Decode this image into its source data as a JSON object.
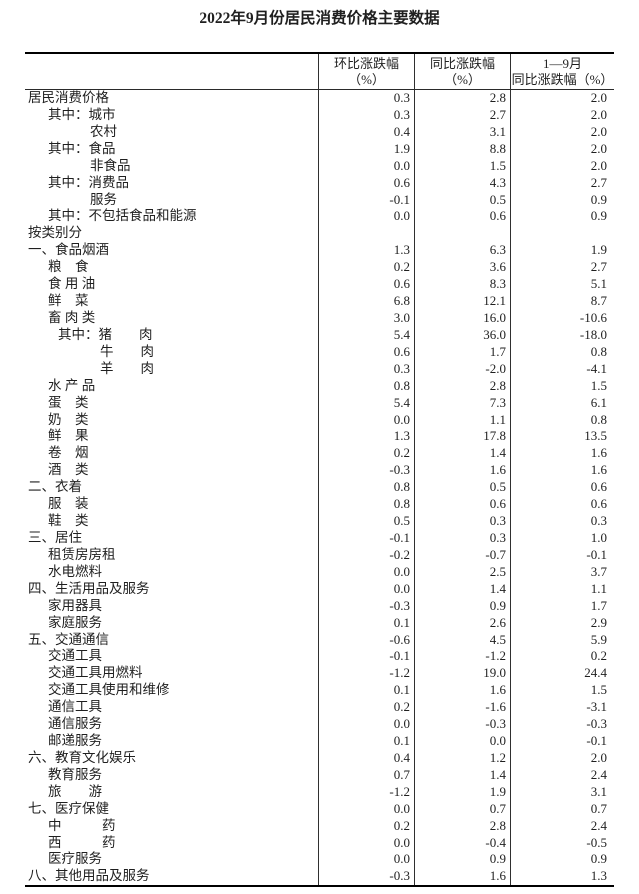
{
  "title": "2022年9月份居民消费价格主要数据",
  "table": {
    "headers": {
      "mom": {
        "line1": "环比涨跌幅",
        "line2": "（%）"
      },
      "yoy": {
        "line1": "同比涨跌幅",
        "line2": "（%）"
      },
      "ytd": {
        "line1": "1—9月",
        "line2": "同比涨跌幅（%）"
      }
    },
    "rows": [
      {
        "label": "居民消费价格",
        "ind": "0",
        "mom": "0.3",
        "yoy": "2.8",
        "ytd": "2.0"
      },
      {
        "label": "其中：城市",
        "ind": "1",
        "mom": "0.3",
        "yoy": "2.7",
        "ytd": "2.0"
      },
      {
        "label": "农村",
        "ind": "2",
        "mom": "0.4",
        "yoy": "3.1",
        "ytd": "2.0"
      },
      {
        "label": "其中：食品",
        "ind": "1",
        "mom": "1.9",
        "yoy": "8.8",
        "ytd": "2.0"
      },
      {
        "label": "非食品",
        "ind": "2",
        "mom": "0.0",
        "yoy": "1.5",
        "ytd": "2.0"
      },
      {
        "label": "其中：消费品",
        "ind": "1",
        "mom": "0.6",
        "yoy": "4.3",
        "ytd": "2.7"
      },
      {
        "label": "服务",
        "ind": "2",
        "mom": "-0.1",
        "yoy": "0.5",
        "ytd": "0.9"
      },
      {
        "label": "其中：不包括食品和能源",
        "ind": "1",
        "mom": "0.0",
        "yoy": "0.6",
        "ytd": "0.9"
      },
      {
        "label": "按类别分",
        "ind": "0",
        "mom": "",
        "yoy": "",
        "ytd": ""
      },
      {
        "label": "一、食品烟酒",
        "ind": "0",
        "mom": "1.3",
        "yoy": "6.3",
        "ytd": "1.9"
      },
      {
        "label": "粮　食",
        "ind": "1",
        "mom": "0.2",
        "yoy": "3.6",
        "ytd": "2.7"
      },
      {
        "label": "食 用 油",
        "ind": "1",
        "mom": "0.6",
        "yoy": "8.3",
        "ytd": "5.1"
      },
      {
        "label": "鲜　菜",
        "ind": "1",
        "mom": "6.8",
        "yoy": "12.1",
        "ytd": "8.7"
      },
      {
        "label": "畜 肉 类",
        "ind": "1",
        "mom": "3.0",
        "yoy": "16.0",
        "ytd": "-10.6"
      },
      {
        "label": "其中：猪　　肉",
        "ind": "15",
        "mom": "5.4",
        "yoy": "36.0",
        "ytd": "-18.0"
      },
      {
        "label": "牛　　肉",
        "ind": "25",
        "mom": "0.6",
        "yoy": "1.7",
        "ytd": "0.8"
      },
      {
        "label": "羊　　肉",
        "ind": "25",
        "mom": "0.3",
        "yoy": "-2.0",
        "ytd": "-4.1"
      },
      {
        "label": "水 产 品",
        "ind": "1",
        "mom": "0.8",
        "yoy": "2.8",
        "ytd": "1.5"
      },
      {
        "label": "蛋　类",
        "ind": "1",
        "mom": "5.4",
        "yoy": "7.3",
        "ytd": "6.1"
      },
      {
        "label": "奶　类",
        "ind": "1",
        "mom": "0.0",
        "yoy": "1.1",
        "ytd": "0.8"
      },
      {
        "label": "鲜　果",
        "ind": "1",
        "mom": "1.3",
        "yoy": "17.8",
        "ytd": "13.5"
      },
      {
        "label": "卷　烟",
        "ind": "1",
        "mom": "0.2",
        "yoy": "1.4",
        "ytd": "1.6"
      },
      {
        "label": "酒　类",
        "ind": "1",
        "mom": "-0.3",
        "yoy": "1.6",
        "ytd": "1.6"
      },
      {
        "label": "二、衣着",
        "ind": "0",
        "mom": "0.8",
        "yoy": "0.5",
        "ytd": "0.6"
      },
      {
        "label": "服　装",
        "ind": "1",
        "mom": "0.8",
        "yoy": "0.6",
        "ytd": "0.6"
      },
      {
        "label": "鞋　类",
        "ind": "1",
        "mom": "0.5",
        "yoy": "0.3",
        "ytd": "0.3"
      },
      {
        "label": "三、居住",
        "ind": "0",
        "mom": "-0.1",
        "yoy": "0.3",
        "ytd": "1.0"
      },
      {
        "label": "租赁房房租",
        "ind": "1",
        "mom": "-0.2",
        "yoy": "-0.7",
        "ytd": "-0.1"
      },
      {
        "label": "水电燃料",
        "ind": "1",
        "mom": "0.0",
        "yoy": "2.5",
        "ytd": "3.7"
      },
      {
        "label": "四、生活用品及服务",
        "ind": "0",
        "mom": "0.0",
        "yoy": "1.4",
        "ytd": "1.1"
      },
      {
        "label": "家用器具",
        "ind": "1",
        "mom": "-0.3",
        "yoy": "0.9",
        "ytd": "1.7"
      },
      {
        "label": "家庭服务",
        "ind": "1",
        "mom": "0.1",
        "yoy": "2.6",
        "ytd": "2.9"
      },
      {
        "label": "五、交通通信",
        "ind": "0",
        "mom": "-0.6",
        "yoy": "4.5",
        "ytd": "5.9"
      },
      {
        "label": "交通工具",
        "ind": "1",
        "mom": "-0.1",
        "yoy": "-1.2",
        "ytd": "0.2"
      },
      {
        "label": "交通工具用燃料",
        "ind": "1",
        "mom": "-1.2",
        "yoy": "19.0",
        "ytd": "24.4"
      },
      {
        "label": "交通工具使用和维修",
        "ind": "1",
        "mom": "0.1",
        "yoy": "1.6",
        "ytd": "1.5"
      },
      {
        "label": "通信工具",
        "ind": "1",
        "mom": "0.2",
        "yoy": "-1.6",
        "ytd": "-3.1"
      },
      {
        "label": "通信服务",
        "ind": "1",
        "mom": "0.0",
        "yoy": "-0.3",
        "ytd": "-0.3"
      },
      {
        "label": "邮递服务",
        "ind": "1",
        "mom": "0.1",
        "yoy": "0.0",
        "ytd": "-0.1"
      },
      {
        "label": "六、教育文化娱乐",
        "ind": "0",
        "mom": "0.4",
        "yoy": "1.2",
        "ytd": "2.0"
      },
      {
        "label": "教育服务",
        "ind": "1",
        "mom": "0.7",
        "yoy": "1.4",
        "ytd": "2.4"
      },
      {
        "label": "旅　　游",
        "ind": "1",
        "mom": "-1.2",
        "yoy": "1.9",
        "ytd": "3.1"
      },
      {
        "label": "七、医疗保健",
        "ind": "0",
        "mom": "0.0",
        "yoy": "0.7",
        "ytd": "0.7"
      },
      {
        "label": "中　　　药",
        "ind": "1",
        "mom": "0.2",
        "yoy": "2.8",
        "ytd": "2.4"
      },
      {
        "label": "西　　　药",
        "ind": "1",
        "mom": "0.0",
        "yoy": "-0.4",
        "ytd": "-0.5"
      },
      {
        "label": "医疗服务",
        "ind": "1",
        "mom": "0.0",
        "yoy": "0.9",
        "ytd": "0.9"
      },
      {
        "label": "八、其他用品及服务",
        "ind": "0",
        "mom": "-0.3",
        "yoy": "1.6",
        "ytd": "1.3"
      }
    ]
  }
}
